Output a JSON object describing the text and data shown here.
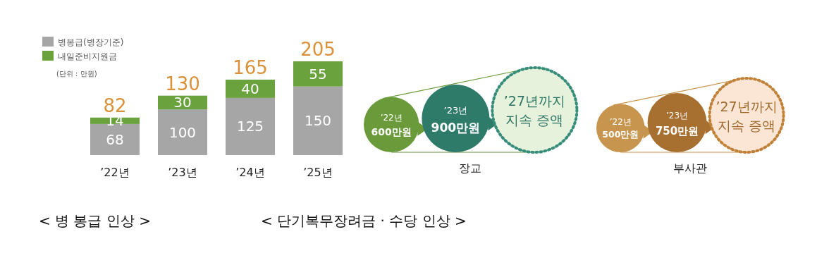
{
  "chart_data": [
    {
      "type": "bar",
      "stacked": true,
      "title": "< 병 봉급 인상 >",
      "categories": [
        "’22년",
        "’23년",
        "’24년",
        "’25년"
      ],
      "series": [
        {
          "name": "병봉급(병장기준)",
          "color": "#a6a6a6",
          "values": [
            68,
            100,
            125,
            150
          ]
        },
        {
          "name": "내일준비지원금",
          "color": "#6aa33e",
          "values": [
            14,
            30,
            40,
            55
          ]
        }
      ],
      "totals": [
        "82",
        "130",
        "165",
        "205"
      ],
      "data_labels": true,
      "legend": "top left",
      "annotations": [
        "(단위 : 만원)"
      ]
    },
    {
      "type": "other",
      "title": "< 단기복무장려금 · 수당 인상 >",
      "xlabel": "장교",
      "categories": [
        "’22년",
        "’23년",
        "’27년까지\n지속 증액"
      ],
      "values": [
        600,
        900,
        null
      ],
      "value_labels": [
        "600만원",
        "900만원",
        null
      ],
      "colors": [
        "#6a9a3a",
        "#2e7b6a",
        "#e6f2dc"
      ]
    },
    {
      "type": "other",
      "xlabel": "부사관",
      "categories": [
        "’22년",
        "’23년",
        "’27년까지\n지속 증액"
      ],
      "values": [
        500,
        750,
        null
      ],
      "value_labels": [
        "500만원",
        "750만원",
        null
      ],
      "colors": [
        "#c8954e",
        "#a87030",
        "#fbe6d6"
      ]
    }
  ]
}
